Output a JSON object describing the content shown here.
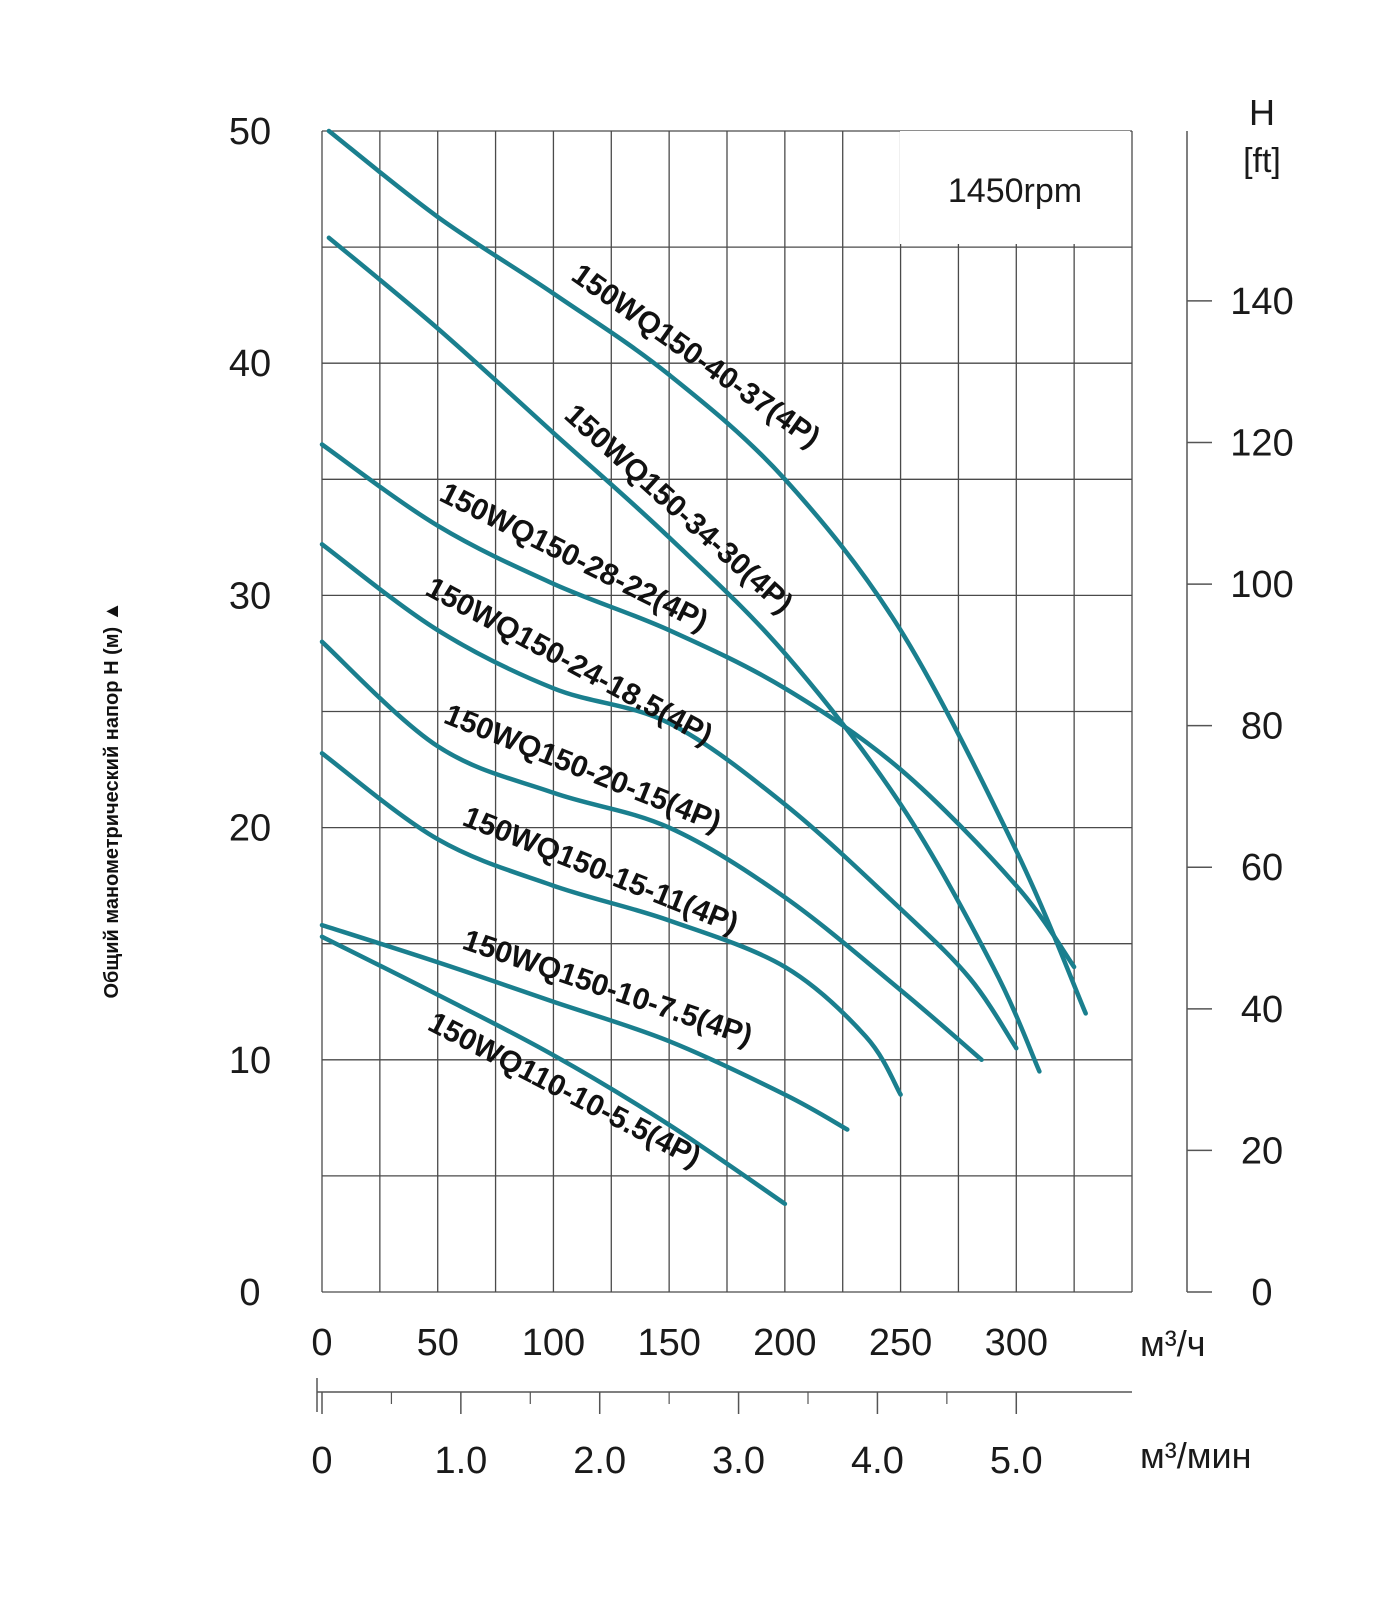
{
  "chart_data": {
    "type": "line",
    "speed_label": "1450rpm",
    "ylabel": "Общий манометрический напор H (м) ▲",
    "ylabel_right": [
      "H",
      "[ft]"
    ],
    "xlabel": "м³/ч",
    "xlabel_secondary": "м³/мин",
    "xlim": [
      0,
      350
    ],
    "ylim": [
      0,
      50
    ],
    "ylim_ft": [
      0,
      164
    ],
    "grid": true,
    "x_ticks": [
      0,
      50,
      100,
      150,
      200,
      250,
      300
    ],
    "x_tick_labels": [
      "0",
      "50",
      "100",
      "150",
      "200",
      "250",
      "300"
    ],
    "y_ticks": [
      0,
      10,
      20,
      30,
      40,
      50
    ],
    "y_tick_labels": [
      "0",
      "10",
      "20",
      "30",
      "40",
      "50"
    ],
    "ft_ticks": [
      0,
      20,
      40,
      60,
      80,
      100,
      120,
      140
    ],
    "ft_tick_labels": [
      "0",
      "20",
      "40",
      "60",
      "80",
      "100",
      "120",
      "140"
    ],
    "min_ticks": [
      0,
      1.0,
      2.0,
      3.0,
      4.0,
      5.0
    ],
    "min_tick_labels": [
      "0",
      "1.0",
      "2.0",
      "3.0",
      "4.0",
      "5.0"
    ],
    "line_color": "#1a7f8e",
    "series": [
      {
        "name": "150WQ150-40-37(4P)",
        "x": [
          3,
          50,
          100,
          150,
          200,
          250,
          300,
          330
        ],
        "y": [
          50,
          46.3,
          43,
          39.5,
          35,
          28.5,
          19,
          12
        ]
      },
      {
        "name": "150WQ150-34-30(4P)",
        "x": [
          3,
          50,
          100,
          150,
          200,
          250,
          290,
          310
        ],
        "y": [
          45.4,
          41.5,
          37,
          32.5,
          27.5,
          21,
          14,
          9.5
        ]
      },
      {
        "name": "150WQ150-28-22(4P)",
        "x": [
          0,
          50,
          100,
          150,
          200,
          250,
          300,
          325
        ],
        "y": [
          36.5,
          33,
          30.5,
          28.5,
          26,
          22.5,
          17.5,
          14
        ]
      },
      {
        "name": "150WQ150-24-18.5(4P)",
        "x": [
          0,
          50,
          100,
          150,
          200,
          250,
          280,
          300
        ],
        "y": [
          32.2,
          28.5,
          26,
          24.5,
          21,
          16.5,
          13.5,
          10.5
        ]
      },
      {
        "name": "150WQ150-20-15(4P)",
        "x": [
          0,
          50,
          100,
          150,
          200,
          250,
          285
        ],
        "y": [
          28,
          23.5,
          21.5,
          20,
          17,
          13,
          10
        ]
      },
      {
        "name": "150WQ150-15-11(4P)",
        "x": [
          0,
          50,
          100,
          150,
          200,
          235,
          250
        ],
        "y": [
          23.2,
          19.5,
          17.5,
          16,
          14,
          11,
          8.5
        ]
      },
      {
        "name": "150WQ150-10-7.5(4P)",
        "x": [
          0,
          50,
          100,
          150,
          200,
          227
        ],
        "y": [
          15.8,
          14.2,
          12.5,
          10.8,
          8.5,
          7
        ]
      },
      {
        "name": "150WQ110-10-5.5(4P)",
        "x": [
          0,
          50,
          100,
          150,
          200
        ],
        "y": [
          15.3,
          12.8,
          10.2,
          7.2,
          3.8
        ]
      }
    ]
  }
}
